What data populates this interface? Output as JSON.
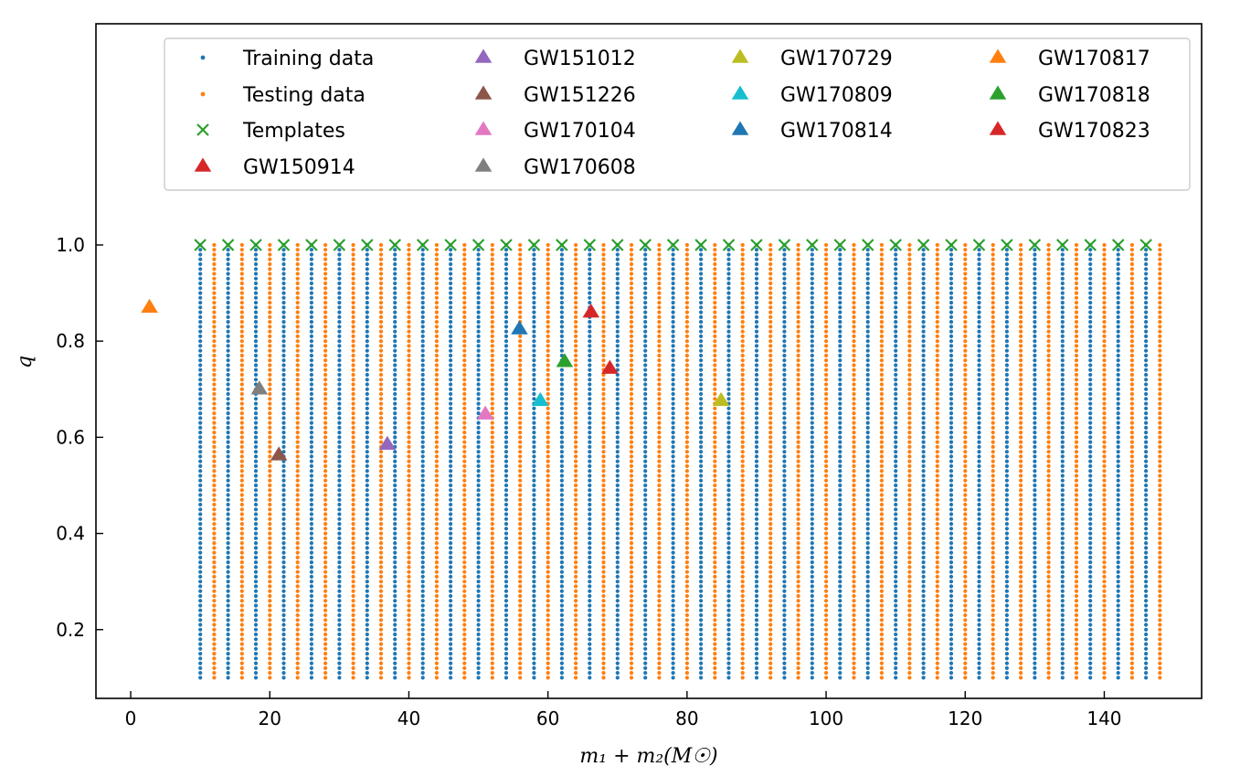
{
  "chart_data": {
    "type": "scatter",
    "title": "",
    "xlabel": "m₁ + m₂(M☉)",
    "ylabel": "q",
    "xlim": [
      -5,
      154
    ],
    "ylim": [
      0.057,
      1.46
    ],
    "xticks": [
      0,
      20,
      40,
      60,
      80,
      100,
      120,
      140
    ],
    "yticks": [
      0.2,
      0.4,
      0.6,
      0.8,
      1.0
    ],
    "xtick_labels": [
      "0",
      "20",
      "40",
      "60",
      "80",
      "100",
      "120",
      "140"
    ],
    "ytick_labels": [
      "0.2",
      "0.4",
      "0.6",
      "0.8",
      "1.0"
    ],
    "grid": false,
    "legend_position": "top",
    "colors": {
      "training": "#1f77b4",
      "testing": "#ff7f0e",
      "templates": "#2ca02c"
    },
    "grid_series": {
      "training": {
        "name": "Training data",
        "x_start": 10,
        "x_step": 4,
        "x_count": 35,
        "y_start": 0.1,
        "y_end": 1.0,
        "y_step": 0.01
      },
      "testing": {
        "name": "Testing data",
        "x_start": 12,
        "x_step": 4,
        "x_count": 35,
        "y_start": 0.1,
        "y_end": 1.0,
        "y_step": 0.01
      }
    },
    "templates": {
      "name": "Templates",
      "x_start": 10,
      "x_step": 4,
      "x_count": 35,
      "y": 1.0
    },
    "events": [
      {
        "name": "GW150914",
        "x": 66.2,
        "y": 0.86,
        "color": "#d62728"
      },
      {
        "name": "GW151012",
        "x": 36.9,
        "y": 0.585,
        "color": "#9467bd"
      },
      {
        "name": "GW151226",
        "x": 21.3,
        "y": 0.563,
        "color": "#8c564b"
      },
      {
        "name": "GW170104",
        "x": 51.0,
        "y": 0.648,
        "color": "#e377c2"
      },
      {
        "name": "GW170608",
        "x": 18.5,
        "y": 0.7,
        "color": "#7f7f7f"
      },
      {
        "name": "GW170729",
        "x": 84.9,
        "y": 0.676,
        "color": "#bcbd22"
      },
      {
        "name": "GW170809",
        "x": 58.9,
        "y": 0.676,
        "color": "#17becf"
      },
      {
        "name": "GW170814",
        "x": 55.9,
        "y": 0.825,
        "color": "#1f77b4"
      },
      {
        "name": "GW170817",
        "x": 2.7,
        "y": 0.87,
        "color": "#ff7f0e"
      },
      {
        "name": "GW170818",
        "x": 62.4,
        "y": 0.757,
        "color": "#2ca02c"
      },
      {
        "name": "GW170823",
        "x": 68.9,
        "y": 0.743,
        "color": "#d62728"
      }
    ],
    "legend_order": [
      [
        "training",
        "testing",
        "templates",
        "GW150914"
      ],
      [
        "GW151012",
        "GW151226",
        "GW170104",
        "GW170608"
      ],
      [
        "GW170729",
        "GW170809",
        "GW170814"
      ],
      [
        "GW170817",
        "GW170818",
        "GW170823"
      ]
    ]
  }
}
